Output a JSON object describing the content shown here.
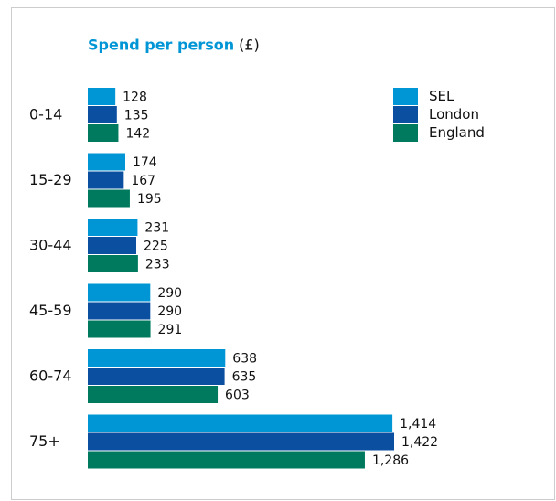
{
  "chart_data": {
    "type": "bar",
    "orientation": "horizontal",
    "title": "Spend per person",
    "title_unit": "(£)",
    "categories": [
      "0-14",
      "15-29",
      "30-44",
      "45-59",
      "60-74",
      "75+"
    ],
    "series": [
      {
        "name": "SEL",
        "color": "#0096d6",
        "values": [
          128,
          174,
          231,
          290,
          638,
          1414
        ],
        "value_labels": [
          "128",
          "174",
          "231",
          "290",
          "638",
          "1,414"
        ]
      },
      {
        "name": "London",
        "color": "#0b4fa0",
        "values": [
          135,
          167,
          225,
          290,
          635,
          1422
        ],
        "value_labels": [
          "135",
          "167",
          "225",
          "290",
          "635",
          "1,422"
        ]
      },
      {
        "name": "England",
        "color": "#007a5e",
        "values": [
          142,
          195,
          233,
          291,
          603,
          1286
        ],
        "value_labels": [
          "142",
          "195",
          "233",
          "291",
          "603",
          "1,286"
        ]
      }
    ],
    "legend": "top-right"
  }
}
